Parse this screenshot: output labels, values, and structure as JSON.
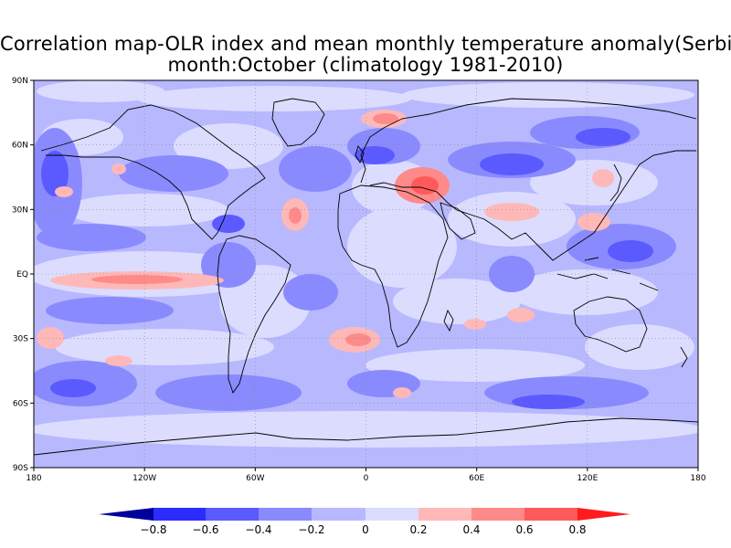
{
  "map": {
    "title_line_1": "Correlation map-OLR index and mean monthly temperature anomaly(Serbia)",
    "title_line_2": "month:October (climatology 1981-2010)",
    "lat_ticks": [
      "90N",
      "60N",
      "30N",
      "EQ",
      "30S",
      "60S",
      "90S"
    ],
    "lon_ticks": [
      "180",
      "120W",
      "60W",
      "0",
      "60E",
      "120E",
      "180"
    ],
    "grid": "dotted every 30 degrees"
  },
  "colorbar": {
    "labels": [
      "-0.8",
      "-0.6",
      "-0.4",
      "-0.2",
      "0",
      "0.2",
      "0.4",
      "0.6",
      "0.8"
    ],
    "bin_colors": [
      "#00009c",
      "#2c2cff",
      "#5a5aff",
      "#8a8aff",
      "#b8b8ff",
      "#dcdcff",
      "#ffb8b8",
      "#ff8a8a",
      "#ff5a5a",
      "#ff1c1c"
    ]
  },
  "colors": {
    "background_light_blue": "#dcdcff",
    "mid_blue": "#b8b8ff",
    "blue": "#8a8aff",
    "deep_blue": "#5a5aff",
    "light_red": "#ffb8b8",
    "red": "#ff8a8a",
    "strong_red": "#ff5a5a"
  }
}
